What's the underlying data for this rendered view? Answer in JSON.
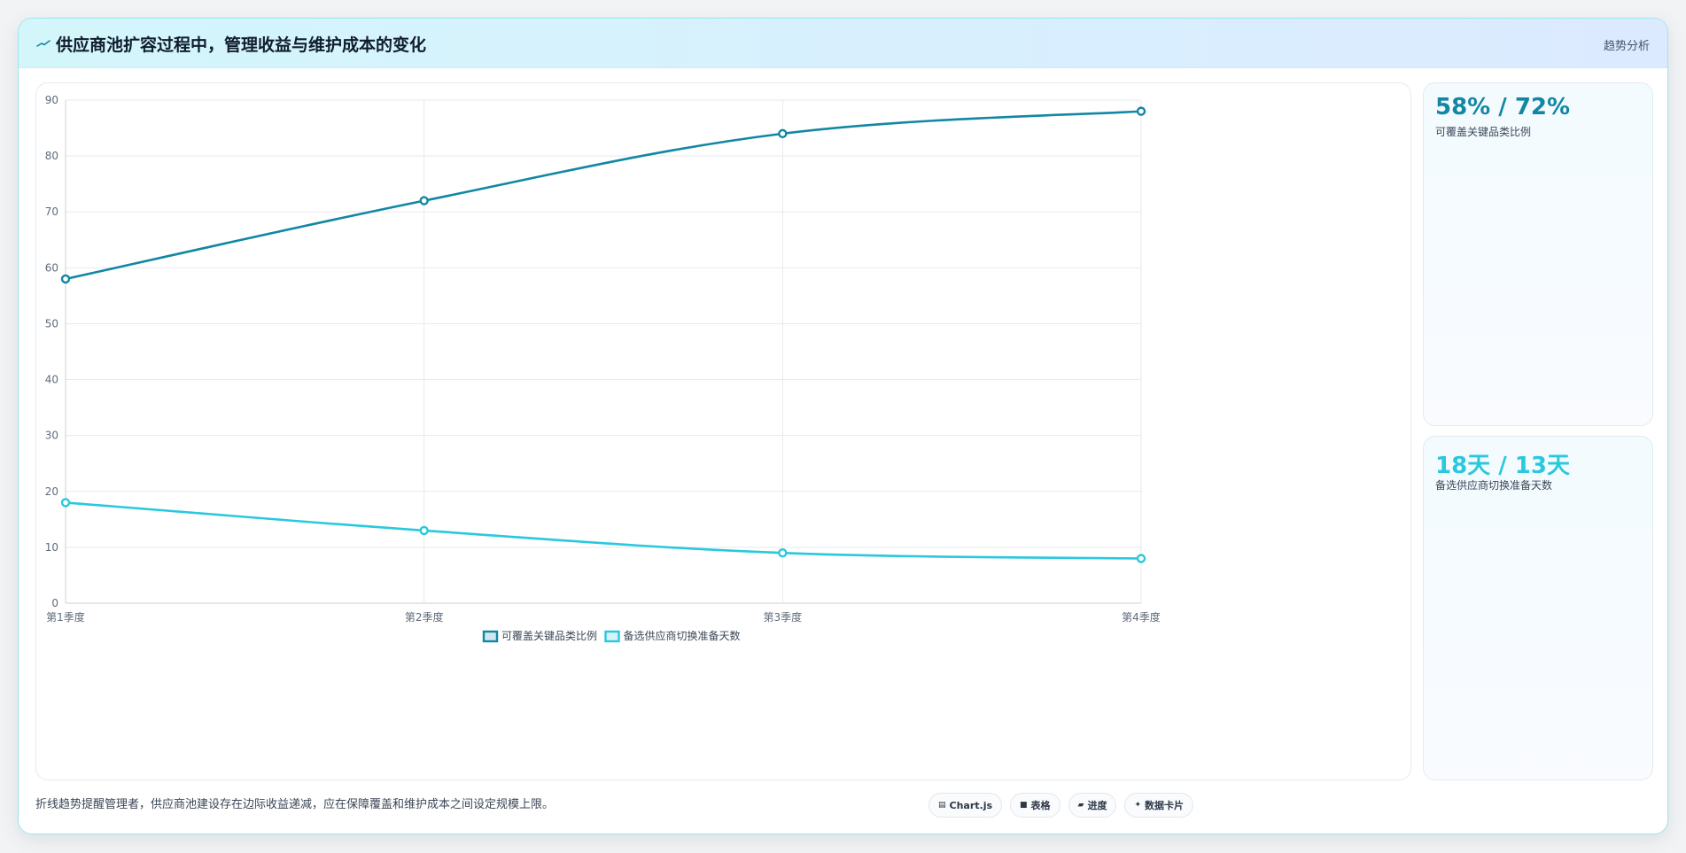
{
  "header": {
    "title": "供应商池扩容过程中，管理收益与维护成本的变化",
    "tag": "趋势分析"
  },
  "kpis": [
    {
      "value": "58% / 72%",
      "label": "可覆盖关键品类比例",
      "color": "#1287a3"
    },
    {
      "value": "18天 / 13天",
      "label": "备选供应商切换准备天数",
      "color": "#2ac8de"
    }
  ],
  "footer": {
    "note": "折线趋势提醒管理者，供应商池建设存在边际收益递减，应在保障覆盖和维护成本之间设定规模上限。",
    "chips": [
      {
        "icon": "chart-icon",
        "glyph": "▤",
        "label": "Chart.js"
      },
      {
        "icon": "table-icon",
        "glyph": "■",
        "label": "表格"
      },
      {
        "icon": "progress-icon",
        "glyph": "▰",
        "label": "进度"
      },
      {
        "icon": "sparkle-icon",
        "glyph": "✦",
        "label": "数据卡片"
      }
    ]
  },
  "chart_data": {
    "type": "line",
    "categories": [
      "第1季度",
      "第2季度",
      "第3季度",
      "第4季度"
    ],
    "series": [
      {
        "name": "可覆盖关键品类比例",
        "values": [
          58,
          72,
          84,
          88
        ],
        "color": "#1287a3"
      },
      {
        "name": "备选供应商切换准备天数",
        "values": [
          18,
          13,
          9,
          8
        ],
        "color": "#2ac8de"
      }
    ],
    "ylim": [
      0,
      90
    ],
    "yticks": [
      0,
      10,
      20,
      30,
      40,
      50,
      60,
      70,
      80,
      90
    ],
    "grid": true,
    "legend": "bottom"
  }
}
